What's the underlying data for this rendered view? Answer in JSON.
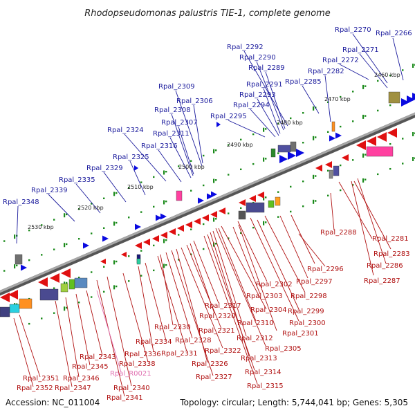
{
  "title": "Rhodopseudomonas palustris TIE-1, complete genome",
  "footer": {
    "accession": "Accession: NC_011004",
    "summary": "Topology: circular; Length: 5,744,041 bp; Genes: 5,305"
  },
  "kbp_ticks": [
    "2460 kbp",
    "2470 kbp",
    "2480 kbp",
    "2490 kbp",
    "2500 kbp",
    "2510 kbp",
    "2520 kbp",
    "2530 kbp"
  ],
  "labels_top": [
    "Rpal_2348",
    "Rpal_2339",
    "Rpal_2335",
    "Rpal_2329",
    "Rpal_2325",
    "Rpal_2324",
    "Rpal_2316",
    "Rpal_2311",
    "Rpal_2307",
    "Rpal_2308",
    "Rpal_2309",
    "Rpal_2306",
    "Rpal_2295",
    "Rpal_2294",
    "Rpal_2293",
    "Rpal_2291",
    "Rpal_2289",
    "Rpal_2290",
    "Rpal_2292",
    "Rpal_2285",
    "Rpal_2282",
    "Rpal_2272",
    "Rpal_2271",
    "Rpal_2270",
    "Rpal_2266"
  ],
  "labels_bottom": [
    "Rpal_2288",
    "Rpal_2281",
    "Rpal_2283",
    "Rpal_2286",
    "Rpal_2287",
    "Rpal_2296",
    "Rpal_2297",
    "Rpal_2298",
    "Rpal_2299",
    "Rpal_2300",
    "Rpal_2301",
    "Rpal_2302",
    "Rpal_2303",
    "Rpal_2304",
    "Rpal_2310",
    "Rpal_2305",
    "Rpal_2312",
    "Rpal_2313",
    "Rpal_2314",
    "Rpal_2315",
    "Rpal_2317",
    "Rpal_2320",
    "Rpal_2321",
    "Rpal_2322",
    "Rpal_2326",
    "Rpal_2327",
    "Rpal_2328",
    "Rpal_2330",
    "Rpal_2331",
    "Rpal_2334",
    "Rpal_2336",
    "Rpal_2338",
    "Rpal_R0021",
    "Rpal_2340",
    "Rpal_2341",
    "Rpal_2343",
    "Rpal_2345",
    "Rpal_2346",
    "Rpal_2347",
    "Rpal_2351",
    "Rpal_2352"
  ],
  "colors": {
    "forward_gene": "#0a0ae0",
    "reverse_gene": "#e01010",
    "backbone": "#808080",
    "tick": "#1a8a1a",
    "label_blue": "#1a1a9c",
    "label_red": "#b01010",
    "label_pink": "#e070b0"
  }
}
